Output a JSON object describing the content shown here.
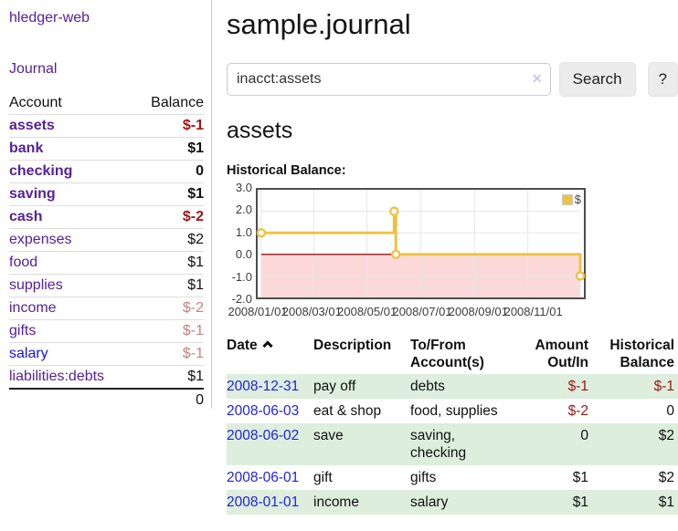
{
  "app": {
    "title": "hledger-web",
    "nav_journal": "Journal"
  },
  "colors": {
    "link_purple": "#552299",
    "link_blue": "#1111ee",
    "negative_strong": "#a11616",
    "negative_weak": "#c38383",
    "row_shade_green": "#ddeedd",
    "series_gold": "#edc240"
  },
  "sidebar": {
    "accounts_header": {
      "account": "Account",
      "balance": "Balance"
    },
    "accounts": [
      {
        "name": "assets",
        "indent": 1,
        "bold": true,
        "balance": "$-1",
        "balance_style": "neg-strong"
      },
      {
        "name": "bank",
        "indent": 2,
        "bold": true,
        "balance": "$1",
        "balance_style": "pos"
      },
      {
        "name": "checking",
        "indent": 3,
        "bold": true,
        "balance": "0",
        "balance_style": "pos"
      },
      {
        "name": "saving",
        "indent": 3,
        "bold": true,
        "balance": "$1",
        "balance_style": "pos"
      },
      {
        "name": "cash",
        "indent": 2,
        "bold": true,
        "balance": "$-2",
        "balance_style": "neg-strong"
      },
      {
        "name": "expenses",
        "indent": 1,
        "bold": false,
        "balance": "$2",
        "balance_style": "pos"
      },
      {
        "name": "food",
        "indent": 2,
        "bold": false,
        "balance": "$1",
        "balance_style": "pos"
      },
      {
        "name": "supplies",
        "indent": 2,
        "bold": false,
        "balance": "$1",
        "balance_style": "pos"
      },
      {
        "name": "income",
        "indent": 1,
        "bold": false,
        "balance": "$-2",
        "balance_style": "neg-weak"
      },
      {
        "name": "gifts",
        "indent": 2,
        "bold": false,
        "balance": "$-1",
        "balance_style": "neg-weak"
      },
      {
        "name": "salary",
        "indent": 2,
        "bold": false,
        "balance": "$-1",
        "balance_style": "neg-weak",
        "link_color": "blue"
      },
      {
        "name": "liabilities:debts",
        "indent": 1,
        "bold": false,
        "balance": "$1",
        "balance_style": "pos"
      }
    ],
    "total": "0"
  },
  "main": {
    "title": "sample.journal",
    "search": {
      "value": "inacct:assets",
      "clear_icon": "✕",
      "button": "Search",
      "help_button": "?"
    },
    "account_title": "assets",
    "chart_label": "Historical Balance:"
  },
  "chart_data": {
    "type": "line",
    "style": "step",
    "title": "Historical Balance",
    "series": [
      {
        "name": "$",
        "color": "#edc240",
        "points": [
          [
            "2008-01-01",
            1
          ],
          [
            "2008-06-01",
            2
          ],
          [
            "2008-06-03",
            0
          ],
          [
            "2008-12-31",
            -1
          ]
        ]
      }
    ],
    "x_range": [
      "2008-01-01",
      "2008-12-31"
    ],
    "y_range": [
      -2,
      3
    ],
    "y_ticks": [
      "3.0",
      "2.0",
      "1.0",
      "0.0",
      "-1.0",
      "-2.0"
    ],
    "x_ticks": [
      {
        "label": "2008/01/01",
        "date": "2008-01-01"
      },
      {
        "label": "2008/03/01",
        "date": "2008-03-01"
      },
      {
        "label": "2008/05/01",
        "date": "2008-05-01"
      },
      {
        "label": "2008/07/01",
        "date": "2008-07-01"
      },
      {
        "label": "2008/09/01",
        "date": "2008-09-01"
      },
      {
        "label": "2008/11/01",
        "date": "2008-11-01"
      }
    ],
    "grid": true,
    "negative_region_color": "#fbd9d9",
    "zero_line_color": "#991414",
    "legend": {
      "label": "$",
      "swatch_color": "#edc240",
      "position": "top-right"
    }
  },
  "register": {
    "columns": [
      "Date",
      "Description",
      "To/From Account(s)",
      "Amount Out/In",
      "Historical Balance"
    ],
    "sort": {
      "column": "Date",
      "direction": "ascending"
    },
    "rows": [
      {
        "date": "2008-12-31",
        "description": "pay off",
        "accounts": "debts",
        "amount": "$-1",
        "amount_neg": true,
        "balance": "$-1",
        "balance_neg": true,
        "shaded": true
      },
      {
        "date": "2008-06-03",
        "description": "eat & shop",
        "accounts": "food, supplies",
        "amount": "$-2",
        "amount_neg": true,
        "balance": "0",
        "balance_neg": false,
        "shaded": false
      },
      {
        "date": "2008-06-02",
        "description": "save",
        "accounts": "saving, checking",
        "amount": "0",
        "amount_neg": false,
        "balance": "$2",
        "balance_neg": false,
        "shaded": true
      },
      {
        "date": "2008-06-01",
        "description": "gift",
        "accounts": "gifts",
        "amount": "$1",
        "amount_neg": false,
        "balance": "$2",
        "balance_neg": false,
        "shaded": false
      },
      {
        "date": "2008-01-01",
        "description": "income",
        "accounts": "salary",
        "amount": "$1",
        "amount_neg": false,
        "balance": "$1",
        "balance_neg": false,
        "shaded": true
      }
    ]
  }
}
